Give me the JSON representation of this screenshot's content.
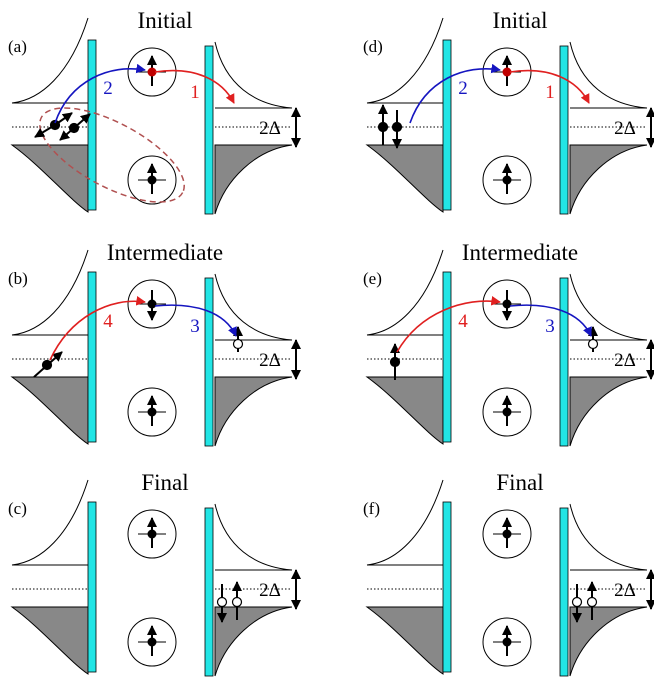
{
  "panels": [
    {
      "label": "(a)",
      "title": "Initial",
      "gap": "2Δ",
      "arrows": [
        "2",
        "1"
      ]
    },
    {
      "label": "(b)",
      "title": "Intermediate",
      "gap": "2Δ",
      "arrows": [
        "4",
        "3"
      ]
    },
    {
      "label": "(c)",
      "title": "Final",
      "gap": "2Δ",
      "arrows": []
    },
    {
      "label": "(d)",
      "title": "Initial",
      "gap": "2Δ",
      "arrows": [
        "2",
        "1"
      ]
    },
    {
      "label": "(e)",
      "title": "Intermediate",
      "gap": "2Δ",
      "arrows": [
        "4",
        "3"
      ]
    },
    {
      "label": "(f)",
      "title": "Final",
      "gap": "2Δ",
      "arrows": []
    }
  ]
}
